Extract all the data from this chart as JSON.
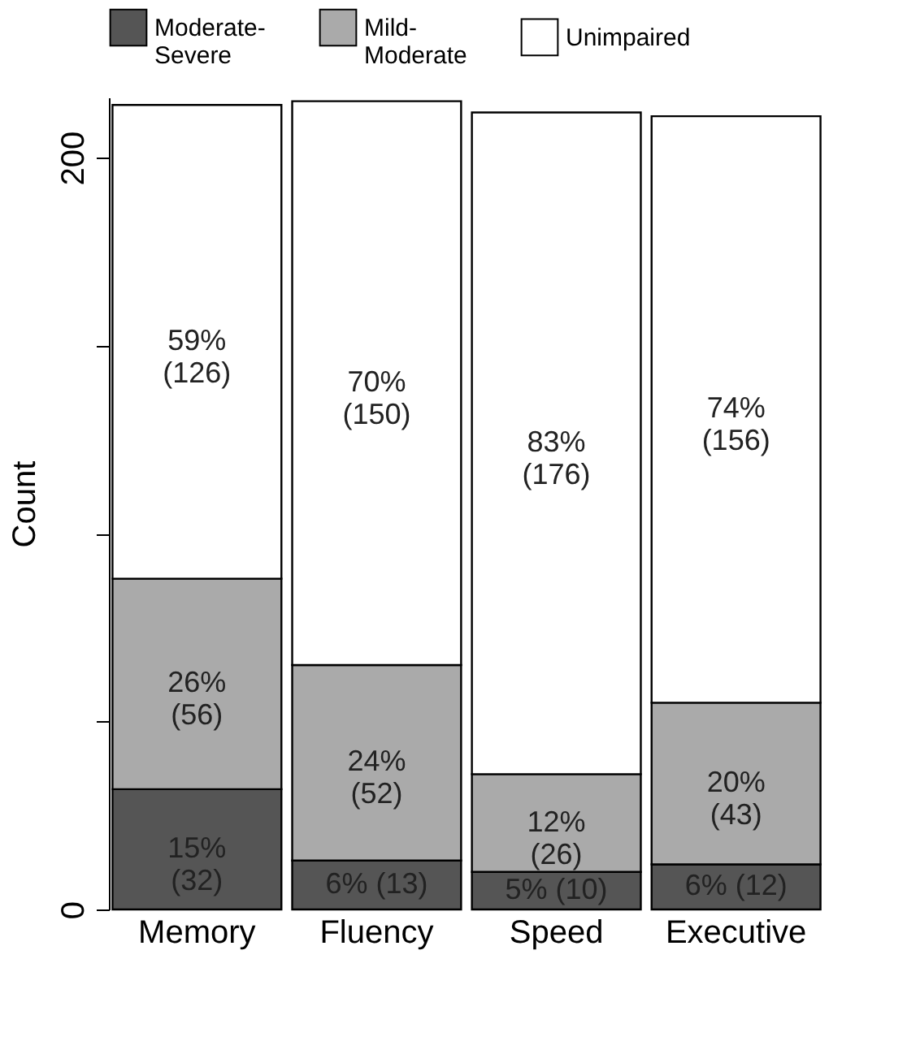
{
  "chart_data": {
    "type": "bar",
    "stacked": true,
    "ylabel": "Count",
    "categories": [
      "Memory",
      "Fluency",
      "Speed",
      "Executive"
    ],
    "series": [
      {
        "name": "Moderate-\nSevere",
        "color": "#555555",
        "values": [
          32,
          13,
          10,
          12
        ],
        "value_labels": [
          "15%\n(32)",
          "6% (13)",
          "5% (10)",
          "6% (12)"
        ]
      },
      {
        "name": "Mild-\nModerate",
        "color": "#aaaaaa",
        "values": [
          56,
          52,
          26,
          43
        ],
        "value_labels": [
          "26%\n(56)",
          "24%\n(52)",
          "12%\n(26)",
          "20%\n(43)"
        ]
      },
      {
        "name": "Unimpaired",
        "color": "#ffffff",
        "values": [
          126,
          150,
          176,
          156
        ],
        "value_labels": [
          "59%\n(126)",
          "70%\n(150)",
          "83%\n(176)",
          "74%\n(156)"
        ]
      }
    ],
    "ylim": [
      0,
      216
    ],
    "yticks": [
      0,
      {
        "value": 50,
        "label": null
      },
      {
        "value": 100,
        "label": null
      },
      {
        "value": 150,
        "label": null
      },
      200
    ],
    "grid": false,
    "legend": "top"
  }
}
